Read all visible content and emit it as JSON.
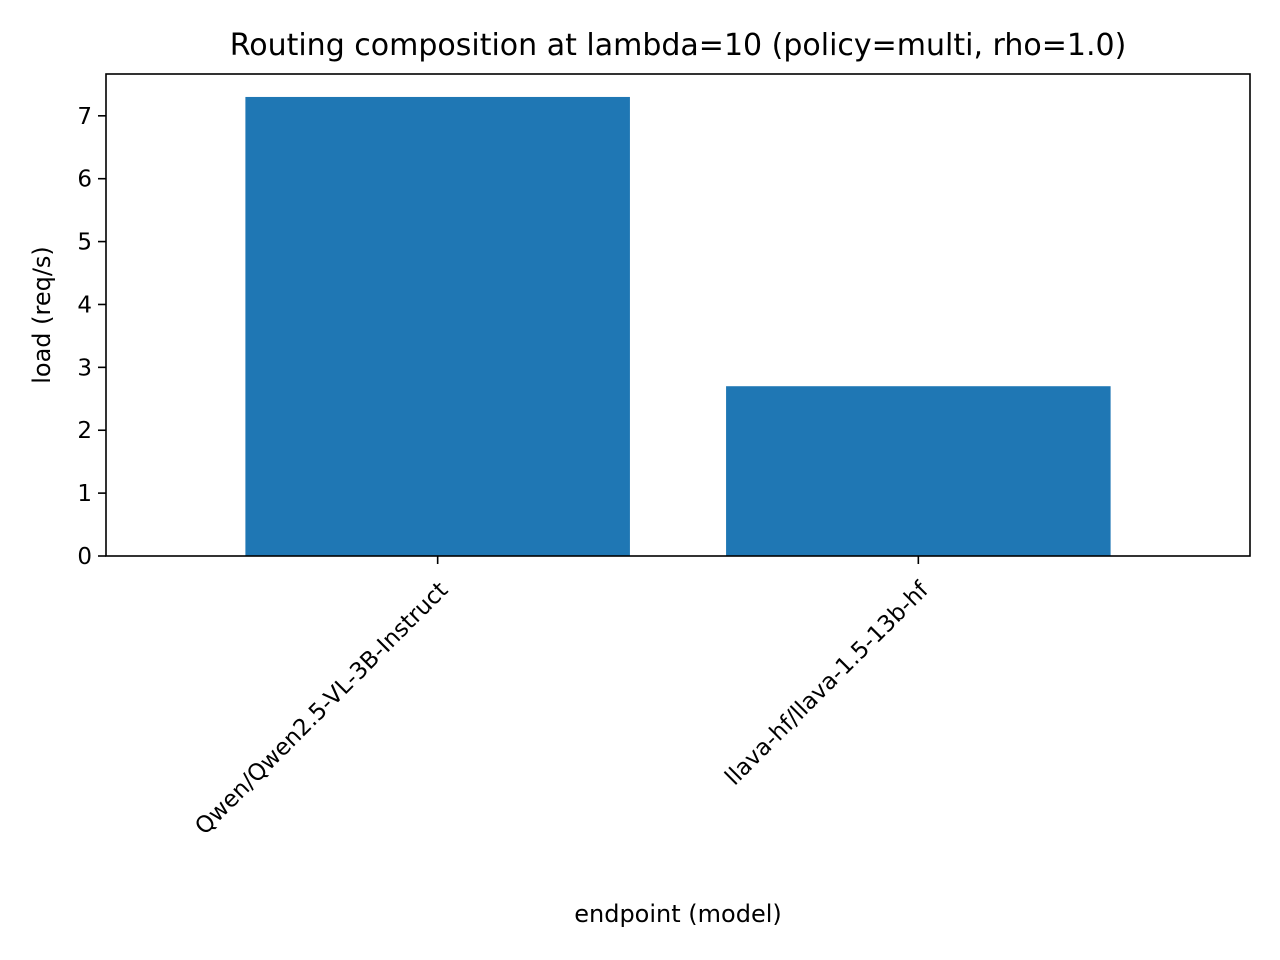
{
  "chart_data": {
    "type": "bar",
    "title": "Routing composition at lambda=10 (policy=multi, rho=1.0)",
    "xlabel": "endpoint (model)",
    "ylabel": "load (req/s)",
    "categories": [
      "Qwen/Qwen2.5-VL-3B-Instruct",
      "llava-hf/llava-1.5-13b-hf"
    ],
    "values": [
      7.3,
      2.7
    ],
    "ylim": [
      0,
      7.665
    ],
    "yticks": [
      0,
      1,
      2,
      3,
      4,
      5,
      6,
      7
    ],
    "grid": false,
    "bar_color": "#1f77b4"
  }
}
